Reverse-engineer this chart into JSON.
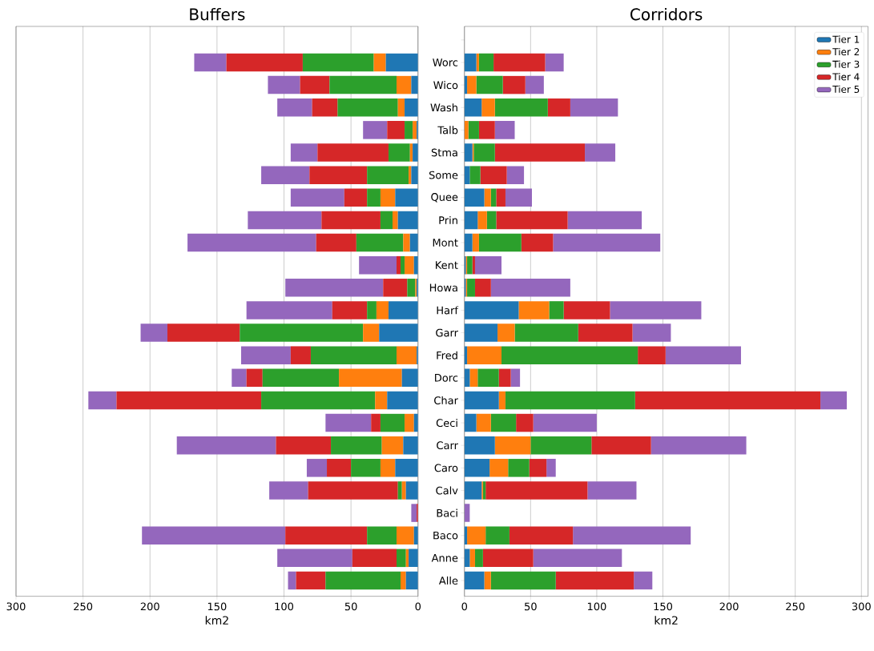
{
  "chart_data": [
    {
      "type": "bar",
      "orientation": "horizontal",
      "stacked": true,
      "title": "Buffers",
      "xlabel": "km2",
      "categories": [
        null,
        null,
        null,
        null,
        null,
        null,
        null,
        null,
        null,
        null,
        null,
        null,
        null,
        null,
        null,
        null,
        null,
        null,
        null,
        null,
        null,
        null,
        null,
        null,
        null
      ],
      "series": [
        {
          "color": "#1f77b4",
          "values": [
            null,
            24,
            5,
            10,
            1,
            4,
            5,
            17,
            15,
            6,
            3,
            1,
            22,
            29,
            1,
            12,
            23,
            3,
            11,
            17,
            9,
            0,
            3,
            7,
            9
          ]
        },
        {
          "color": "#ff7f0e",
          "values": [
            null,
            9,
            11,
            5,
            3,
            2,
            2,
            11,
            4,
            5,
            7,
            1,
            9,
            12,
            15,
            47,
            9,
            7,
            16,
            11,
            3,
            0,
            13,
            2,
            4
          ]
        },
        {
          "color": "#2ca02c",
          "values": [
            null,
            53,
            50,
            45,
            6,
            16,
            31,
            10,
            9,
            35,
            3,
            6,
            7,
            92,
            64,
            57,
            85,
            18,
            38,
            22,
            3,
            0,
            22,
            7,
            56
          ]
        },
        {
          "color": "#d62728",
          "values": [
            null,
            57,
            22,
            19,
            13,
            53,
            43,
            17,
            44,
            30,
            3,
            18,
            26,
            54,
            15,
            12,
            108,
            7,
            41,
            18,
            67,
            1,
            61,
            33,
            22
          ]
        },
        {
          "color": "#9467bd",
          "values": [
            null,
            24,
            24,
            26,
            18,
            20,
            36,
            40,
            55,
            96,
            28,
            73,
            64,
            20,
            37,
            11,
            21,
            34,
            74,
            15,
            29,
            4,
            107,
            56,
            6
          ]
        }
      ],
      "xlim": [
        300,
        0
      ],
      "xticks": [
        0,
        50,
        100,
        150,
        200,
        250,
        300
      ],
      "grid": "x",
      "tick_labels": "x"
    },
    {
      "type": "bar",
      "orientation": "horizontal",
      "stacked": true,
      "title": "Corridors",
      "xlabel": "km2",
      "categories": [
        null,
        "Worc",
        "Wico",
        "Wash",
        "Talb",
        "Stma",
        "Some",
        "Quee",
        "Prin",
        "Mont",
        "Kent",
        "Howa",
        "Harf",
        "Garr",
        "Fred",
        "Dorc",
        "Char",
        "Ceci",
        "Carr",
        "Caro",
        "Calv",
        "Baci",
        "Baco",
        "Anne",
        "Alle"
      ],
      "series": [
        {
          "name": "Tier 1",
          "color": "#1f77b4",
          "values": [
            null,
            9,
            2,
            13,
            0,
            6,
            4,
            15,
            10,
            6,
            1,
            1,
            41,
            25,
            2,
            4,
            26,
            9,
            23,
            19,
            13,
            0,
            2,
            4,
            15
          ]
        },
        {
          "name": "Tier 2",
          "color": "#ff7f0e",
          "values": [
            null,
            2,
            7,
            10,
            3,
            1,
            0,
            5,
            7,
            5,
            1,
            1,
            23,
            13,
            26,
            6,
            5,
            11,
            27,
            14,
            1,
            0,
            14,
            4,
            5
          ]
        },
        {
          "name": "Tier 3",
          "color": "#2ca02c",
          "values": [
            null,
            11,
            20,
            40,
            8,
            16,
            8,
            4,
            7,
            32,
            4,
            6,
            11,
            48,
            103,
            16,
            98,
            19,
            46,
            16,
            2,
            0,
            18,
            6,
            49
          ]
        },
        {
          "name": "Tier 4",
          "color": "#d62728",
          "values": [
            null,
            39,
            17,
            17,
            12,
            68,
            20,
            7,
            54,
            24,
            2,
            12,
            35,
            41,
            21,
            9,
            140,
            13,
            45,
            13,
            77,
            0,
            48,
            38,
            59
          ]
        },
        {
          "name": "Tier 5",
          "color": "#9467bd",
          "values": [
            null,
            14,
            14,
            36,
            15,
            23,
            13,
            20,
            56,
            81,
            20,
            60,
            69,
            29,
            57,
            7,
            20,
            48,
            72,
            7,
            37,
            4,
            89,
            67,
            14
          ]
        }
      ],
      "xlim": [
        0,
        305
      ],
      "xticks": [
        0,
        50,
        100,
        150,
        200,
        250,
        300
      ],
      "grid": "x",
      "legend": "top right"
    }
  ]
}
